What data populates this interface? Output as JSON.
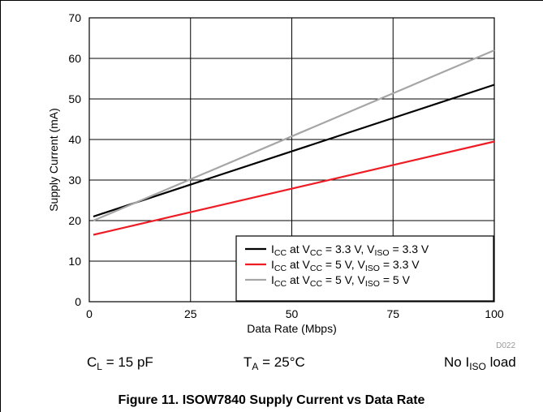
{
  "chart_data": {
    "type": "line",
    "xlabel": "Data Rate (Mbps)",
    "ylabel": "Supply Current (mA)",
    "xlim": [
      0,
      100
    ],
    "ylim": [
      0,
      70
    ],
    "xticks": [
      0,
      25,
      50,
      75,
      100
    ],
    "yticks": [
      0,
      10,
      20,
      30,
      40,
      50,
      60,
      70
    ],
    "grid": true,
    "legend_position": "bottom-right",
    "series": [
      {
        "name_parts": [
          "I",
          "CC",
          " at V",
          "CC",
          " = 3.3 V, V",
          "ISO",
          " = 3.3 V"
        ],
        "color": "#000000",
        "x": [
          1,
          100
        ],
        "y": [
          21.0,
          53.5
        ]
      },
      {
        "name_parts": [
          "I",
          "CC",
          " at V",
          "CC",
          " = 5 V, V",
          "ISO",
          " = 3.3 V"
        ],
        "color": "#ee1c24",
        "x": [
          1,
          100
        ],
        "y": [
          16.5,
          39.5
        ]
      },
      {
        "name_parts": [
          "I",
          "CC",
          " at V",
          "CC",
          " = 5 V, V",
          "ISO",
          " = 5 V"
        ],
        "color": "#a6a6a6",
        "x": [
          1,
          100
        ],
        "y": [
          20.0,
          62.0
        ]
      }
    ],
    "annotations": {
      "figure_id": "D022"
    }
  },
  "conditions": {
    "load_cap": {
      "a": "C",
      "sub": "L",
      "b": " = 15 pF"
    },
    "temperature": {
      "a": "T",
      "sub": "A",
      "b": " = 25°C"
    },
    "iso_load": {
      "a": "No I",
      "sub": "ISO",
      "b": " load"
    }
  },
  "caption": "Figure 11. ISOW7840 Supply Current vs Data Rate"
}
